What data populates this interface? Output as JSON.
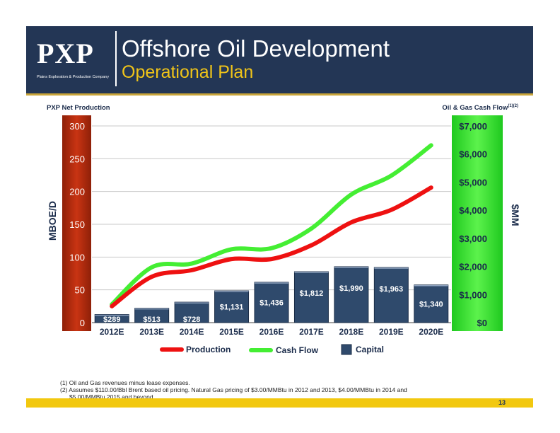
{
  "header": {
    "logo_text": "PXP",
    "logo_subtitle": "Plains Exploration & Production Company",
    "title": "Offshore Oil Development",
    "subtitle": "Operational Plan"
  },
  "colors": {
    "header_bg": "#233655",
    "subtitle": "#f0c419",
    "left_axis_bg": "#b52b10",
    "right_axis_bg": "#35e035",
    "production_line": "#ee1111",
    "cash_flow_line": "#44ee33",
    "capital_bar": "#2f4a6c",
    "footer_bar": "#f2c80f"
  },
  "chart_data": {
    "type": "bar",
    "categories": [
      "2012E",
      "2013E",
      "2014E",
      "2015E",
      "2016E",
      "2017E",
      "2018E",
      "2019E",
      "2020E"
    ],
    "left_axis": {
      "header": "PXP Net Production",
      "label": "MBOE/D",
      "ticks": [
        "300",
        "250",
        "200",
        "150",
        "100",
        "50",
        "0"
      ],
      "range": [
        0,
        300
      ]
    },
    "right_axis": {
      "header": "Oil & Gas Cash Flow",
      "header_superscript": "(1)(2)",
      "label": "$MM",
      "ticks": [
        "$7,000",
        "$6,000",
        "$5,000",
        "$4,000",
        "$3,000",
        "$2,000",
        "$1,000",
        "$0"
      ],
      "range": [
        0,
        7000
      ]
    },
    "series": [
      {
        "name": "Capital",
        "type": "bar",
        "axis": "right",
        "values": [
          289,
          513,
          728,
          1131,
          1436,
          1812,
          1990,
          1963,
          1340
        ],
        "labels": [
          "$289",
          "$513",
          "$728",
          "$1,131",
          "$1,436",
          "$1,812",
          "$1,990",
          "$1,963",
          "$1,340"
        ]
      },
      {
        "name": "Production",
        "type": "line",
        "axis": "left",
        "values": [
          25,
          70,
          80,
          97,
          97,
          118,
          153,
          172,
          206
        ]
      },
      {
        "name": "Cash Flow",
        "type": "line",
        "axis": "right",
        "values": [
          650,
          1970,
          2100,
          2610,
          2650,
          3350,
          4560,
          5230,
          6310
        ]
      }
    ],
    "legend": [
      "Production",
      "Cash Flow",
      "Capital"
    ],
    "legend_placement": "bottom"
  },
  "footnotes": [
    "(1) Oil and Gas revenues minus lease expenses.",
    "(2) Assumes $110.00/Bbl Brent based oil pricing. Natural Gas pricing of $3.00/MMBtu in 2012 and 2013, $4.00/MMBtu in 2014 and",
    "$5.00/MMBtu 2015 and beyond."
  ],
  "page_number": "13"
}
